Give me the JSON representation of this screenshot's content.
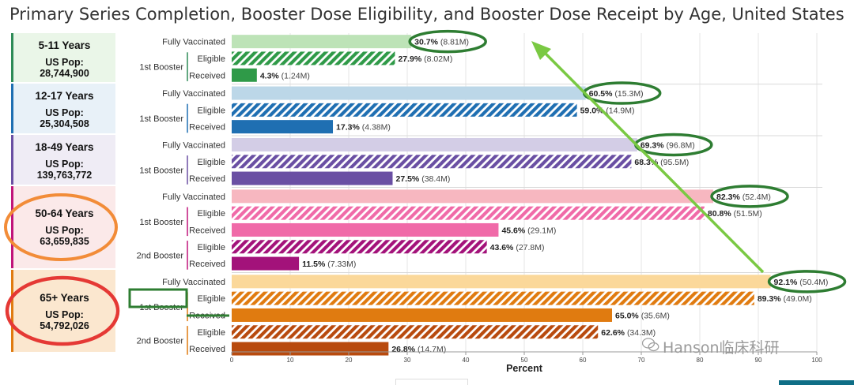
{
  "chart_data": {
    "type": "bar",
    "title": "Primary Series Completion, Booster Dose Eligibility, and Booster Dose Receipt by Age, United States",
    "xlabel": "Percent",
    "xlim": [
      0,
      100
    ],
    "xticks": [
      0,
      10,
      20,
      30,
      40,
      50,
      60,
      70,
      80,
      90,
      100
    ],
    "orientation": "horizontal",
    "groups": [
      {
        "age": "5-11 Years",
        "pop_label": "US Pop:",
        "pop": "28,744,900",
        "colors": {
          "light": "#bde3b7",
          "dark": "#2f9a48",
          "panel": "#eaf6e8",
          "accent": "#2e8b57"
        },
        "rows": [
          {
            "category": "Fully Vaccinated",
            "group": "",
            "measure": "",
            "style": "light",
            "value": 30.7,
            "pct_label": "30.7%",
            "count_label": "(8.81M)"
          },
          {
            "category": "Eligible",
            "group": "1st Booster",
            "measure": "Eligible",
            "style": "hatched",
            "value": 27.9,
            "pct_label": "27.9%",
            "count_label": "(8.02M)"
          },
          {
            "category": "Received",
            "group": "1st Booster",
            "measure": "Received",
            "style": "dark",
            "value": 4.3,
            "pct_label": "4.3%",
            "count_label": "(1.24M)"
          }
        ]
      },
      {
        "age": "12-17 Years",
        "pop_label": "US Pop:",
        "pop": "25,304,508",
        "colors": {
          "light": "#bcd7e8",
          "dark": "#1f6fb2",
          "panel": "#e8f1f8",
          "accent": "#1f6fb2"
        },
        "rows": [
          {
            "category": "Fully Vaccinated",
            "group": "",
            "measure": "",
            "style": "light",
            "value": 60.5,
            "pct_label": "60.5%",
            "count_label": "(15.3M)"
          },
          {
            "category": "Eligible",
            "group": "1st Booster",
            "measure": "Eligible",
            "style": "hatched",
            "value": 59.0,
            "pct_label": "59.0%",
            "count_label": "(14.9M)"
          },
          {
            "category": "Received",
            "group": "1st Booster",
            "measure": "Received",
            "style": "dark",
            "value": 17.3,
            "pct_label": "17.3%",
            "count_label": "(4.38M)"
          }
        ]
      },
      {
        "age": "18-49 Years",
        "pop_label": "US Pop:",
        "pop": "139,763,772",
        "colors": {
          "light": "#d3cde6",
          "dark": "#6a4fa3",
          "panel": "#efecf5",
          "accent": "#6a4fa3"
        },
        "rows": [
          {
            "category": "Fully Vaccinated",
            "group": "",
            "measure": "",
            "style": "light",
            "value": 69.3,
            "pct_label": "69.3%",
            "count_label": "(96.8M)"
          },
          {
            "category": "Eligible",
            "group": "1st Booster",
            "measure": "Eligible",
            "style": "hatched",
            "value": 68.3,
            "pct_label": "68.3%",
            "count_label": "(95.5M)"
          },
          {
            "category": "Received",
            "group": "1st Booster",
            "measure": "Received",
            "style": "dark",
            "value": 27.5,
            "pct_label": "27.5%",
            "count_label": "(38.4M)"
          }
        ]
      },
      {
        "age": "50-64 Years",
        "pop_label": "US Pop:",
        "pop": "63,659,835",
        "colors": {
          "light": "#f7b7c0",
          "dark": "#f06aa8",
          "dark2": "#a3127a",
          "panel": "#fbe9e9",
          "accent": "#c0147a"
        },
        "rows": [
          {
            "category": "Fully Vaccinated",
            "group": "",
            "measure": "",
            "style": "light",
            "value": 82.3,
            "pct_label": "82.3%",
            "count_label": "(52.4M)"
          },
          {
            "category": "Eligible",
            "group": "1st Booster",
            "measure": "Eligible",
            "style": "hatched",
            "value": 80.8,
            "pct_label": "80.8%",
            "count_label": "(51.5M)"
          },
          {
            "category": "Received",
            "group": "1st Booster",
            "measure": "Received",
            "style": "dark",
            "value": 45.6,
            "pct_label": "45.6%",
            "count_label": "(29.1M)"
          },
          {
            "category": "Eligible",
            "group": "2nd Booster",
            "measure": "Eligible",
            "style": "hatched2",
            "value": 43.6,
            "pct_label": "43.6%",
            "count_label": "(27.8M)"
          },
          {
            "category": "Received",
            "group": "2nd Booster",
            "measure": "Received",
            "style": "dark2",
            "value": 11.5,
            "pct_label": "11.5%",
            "count_label": "(7.33M)"
          }
        ]
      },
      {
        "age": "65+ Years",
        "pop_label": "US Pop:",
        "pop": "54,792,026",
        "colors": {
          "light": "#fbd89a",
          "dark": "#e07b10",
          "dark2": "#b84a0e",
          "panel": "#fbe7cf",
          "accent": "#e07b10"
        },
        "rows": [
          {
            "category": "Fully Vaccinated",
            "group": "",
            "measure": "",
            "style": "light",
            "value": 92.1,
            "pct_label": "92.1%",
            "count_label": "(50.4M)"
          },
          {
            "category": "Eligible",
            "group": "1st Booster",
            "measure": "Eligible",
            "style": "hatched",
            "value": 89.3,
            "pct_label": "89.3%",
            "count_label": "(49.0M)"
          },
          {
            "category": "Received",
            "group": "1st Booster",
            "measure": "Received",
            "style": "dark",
            "value": 65.0,
            "pct_label": "65.0%",
            "count_label": "(35.6M)"
          },
          {
            "category": "Eligible",
            "group": "2nd Booster",
            "measure": "Eligible",
            "style": "hatched2",
            "value": 62.6,
            "pct_label": "62.6%",
            "count_label": "(34.3M)"
          },
          {
            "category": "Received",
            "group": "2nd Booster",
            "measure": "Received",
            "style": "dark2",
            "value": 26.8,
            "pct_label": "26.8%",
            "count_label": "(14.7M)"
          }
        ]
      }
    ]
  },
  "annotations": {
    "ellipse_colors": {
      "green": "#2e7d32",
      "orange": "#f28c38",
      "red": "#e53935"
    },
    "arrow_color": "#7ac943"
  },
  "watermark": "Hanson临床科研"
}
